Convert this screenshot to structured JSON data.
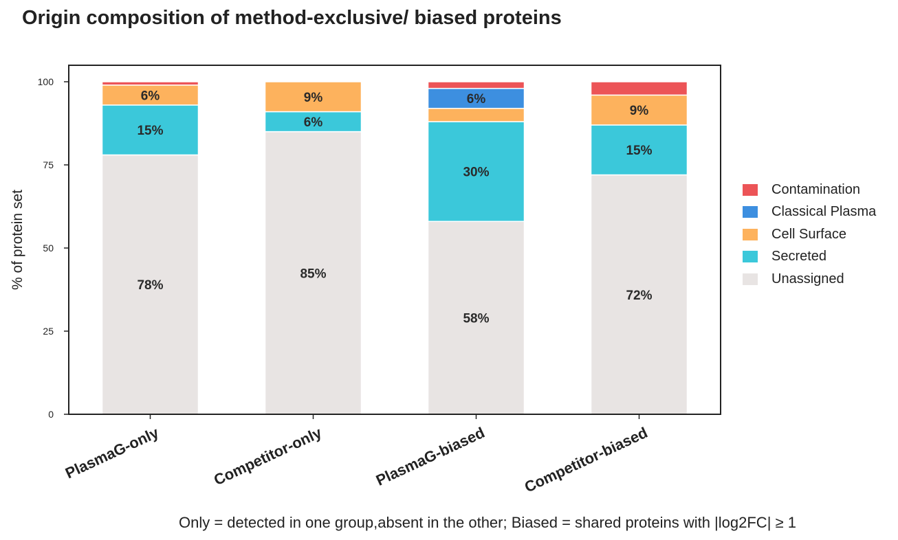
{
  "chart_data": {
    "type": "bar",
    "stacked": true,
    "title": "Origin composition of method-exclusive/ biased proteins",
    "ylabel": "% of protein set",
    "xlabel": "",
    "ylim": [
      0,
      105
    ],
    "yticks": [
      0,
      25,
      50,
      75,
      100
    ],
    "grid": false,
    "legend_position": "right",
    "categories": [
      "PlasmaG-only",
      "Competitor-only",
      "PlasmaG-biased",
      "Competitor-biased"
    ],
    "series": [
      {
        "name": "Unassigned",
        "color": "#e8e4e3",
        "values": [
          78,
          85,
          58,
          72
        ],
        "labels": [
          "78%",
          "85%",
          "58%",
          "72%"
        ]
      },
      {
        "name": "Secreted",
        "color": "#3bc8da",
        "values": [
          15,
          6,
          30,
          15
        ],
        "labels": [
          "15%",
          "6%",
          "30%",
          "15%"
        ]
      },
      {
        "name": "Cell Surface",
        "color": "#fdb25d",
        "values": [
          6,
          9,
          4,
          9
        ],
        "labels": [
          "6%",
          "9%",
          "",
          "9%"
        ]
      },
      {
        "name": "Classical Plasma",
        "color": "#3d8fe0",
        "values": [
          0,
          0,
          6,
          0
        ],
        "labels": [
          "",
          "",
          "6%",
          ""
        ]
      },
      {
        "name": "Contamination",
        "color": "#ec5457",
        "values": [
          1,
          0,
          2,
          4
        ],
        "labels": [
          "",
          "",
          "",
          ""
        ]
      }
    ],
    "legend_order": [
      "Contamination",
      "Classical Plasma",
      "Cell Surface",
      "Secreted",
      "Unassigned"
    ],
    "footnote": "Only = detected in one group,absent in the other; Biased = shared proteins with |log2FC| ≥ 1"
  }
}
